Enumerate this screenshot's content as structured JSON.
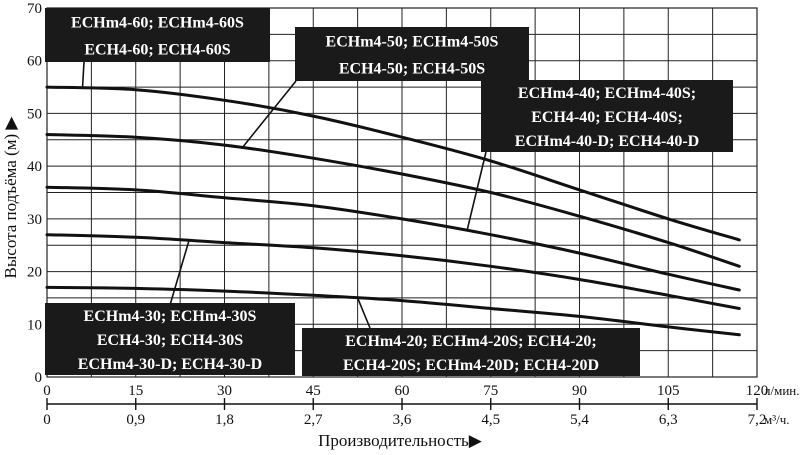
{
  "chart_data": {
    "type": "line",
    "ylabel": "Высота подъёма (м)",
    "xlabel": "Производительность",
    "ylim": [
      0,
      70
    ],
    "xlim": [
      0,
      120
    ],
    "grid": true,
    "y_ticks": [
      "0",
      "10",
      "20",
      "30",
      "40",
      "50",
      "60",
      "70"
    ],
    "x_ticks_primary": [
      "0",
      "15",
      "30",
      "45",
      "60",
      "75",
      "90",
      "105",
      "120"
    ],
    "x_ticks_secondary": [
      "0",
      "0,9",
      "1,8",
      "2,7",
      "3,6",
      "4,5",
      "5,4",
      "6,3",
      "7,2"
    ],
    "x_unit_primary": "л/мин.",
    "x_unit_secondary": "м³/ч.",
    "x_values": [
      0,
      15,
      30,
      45,
      60,
      75,
      90,
      105,
      117
    ],
    "series": [
      {
        "id": "s60",
        "label_lines": [
          "ECHm4-60; ECHm4-60S",
          "ECH4-60; ECH4-60S"
        ],
        "values": [
          55,
          54.5,
          52.5,
          49.5,
          45.5,
          41,
          35.5,
          30,
          26
        ]
      },
      {
        "id": "s50",
        "label_lines": [
          "ECHm4-50; ECHm4-50S",
          "ECH4-50; ECH4-50S"
        ],
        "values": [
          46,
          45.5,
          44,
          41.5,
          38.5,
          35,
          30.5,
          25.5,
          21
        ]
      },
      {
        "id": "s40",
        "label_lines": [
          "ECHm4-40; ECHm4-40S;",
          "ECH4-40; ECH4-40S;",
          "ECHm4-40-D; ECH4-40-D"
        ],
        "values": [
          36,
          35.5,
          34,
          32.5,
          30,
          27,
          23.5,
          19.5,
          16.5
        ]
      },
      {
        "id": "s30",
        "label_lines": [
          "ECHm4-30; ECHm4-30S",
          "ECH4-30; ECH4-30S",
          "ECHm4-30-D; ECH4-30-D"
        ],
        "values": [
          27,
          26.5,
          25.5,
          24.5,
          23,
          21,
          18.5,
          15.5,
          13
        ]
      },
      {
        "id": "s20",
        "label_lines": [
          "ECHm4-20; ECHm4-20S; ECH4-20;",
          "ECH4-20S; ECHm4-20D; ECH4-20D"
        ],
        "values": [
          17,
          16.8,
          16.3,
          15.5,
          14.5,
          13,
          11.5,
          9.5,
          8
        ]
      }
    ]
  }
}
